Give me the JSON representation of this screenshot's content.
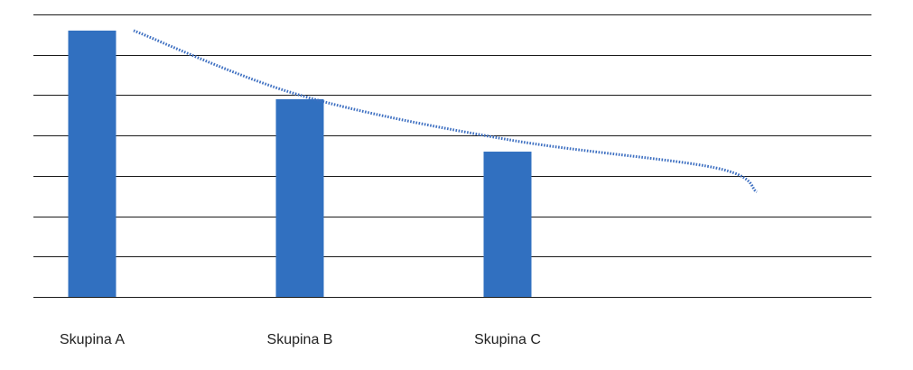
{
  "chart_data": {
    "type": "bar",
    "categories": [
      "Skupina A",
      "Skupina B",
      "Skupina C"
    ],
    "values": [
      6.6,
      4.9,
      3.6
    ],
    "ylim": [
      0,
      7
    ],
    "grid": true,
    "legend": "none",
    "trendline": {
      "type": "exponential",
      "dashed": true,
      "x": [
        1.2,
        2.0,
        3.0,
        4.0,
        4.2
      ],
      "values": [
        6.6,
        5.0,
        3.9,
        3.2,
        2.6
      ]
    }
  },
  "colors": {
    "bar": "#3170c0",
    "trendline": "#3d6fc1",
    "grid": "#1a1a1a",
    "text": "#222222"
  }
}
